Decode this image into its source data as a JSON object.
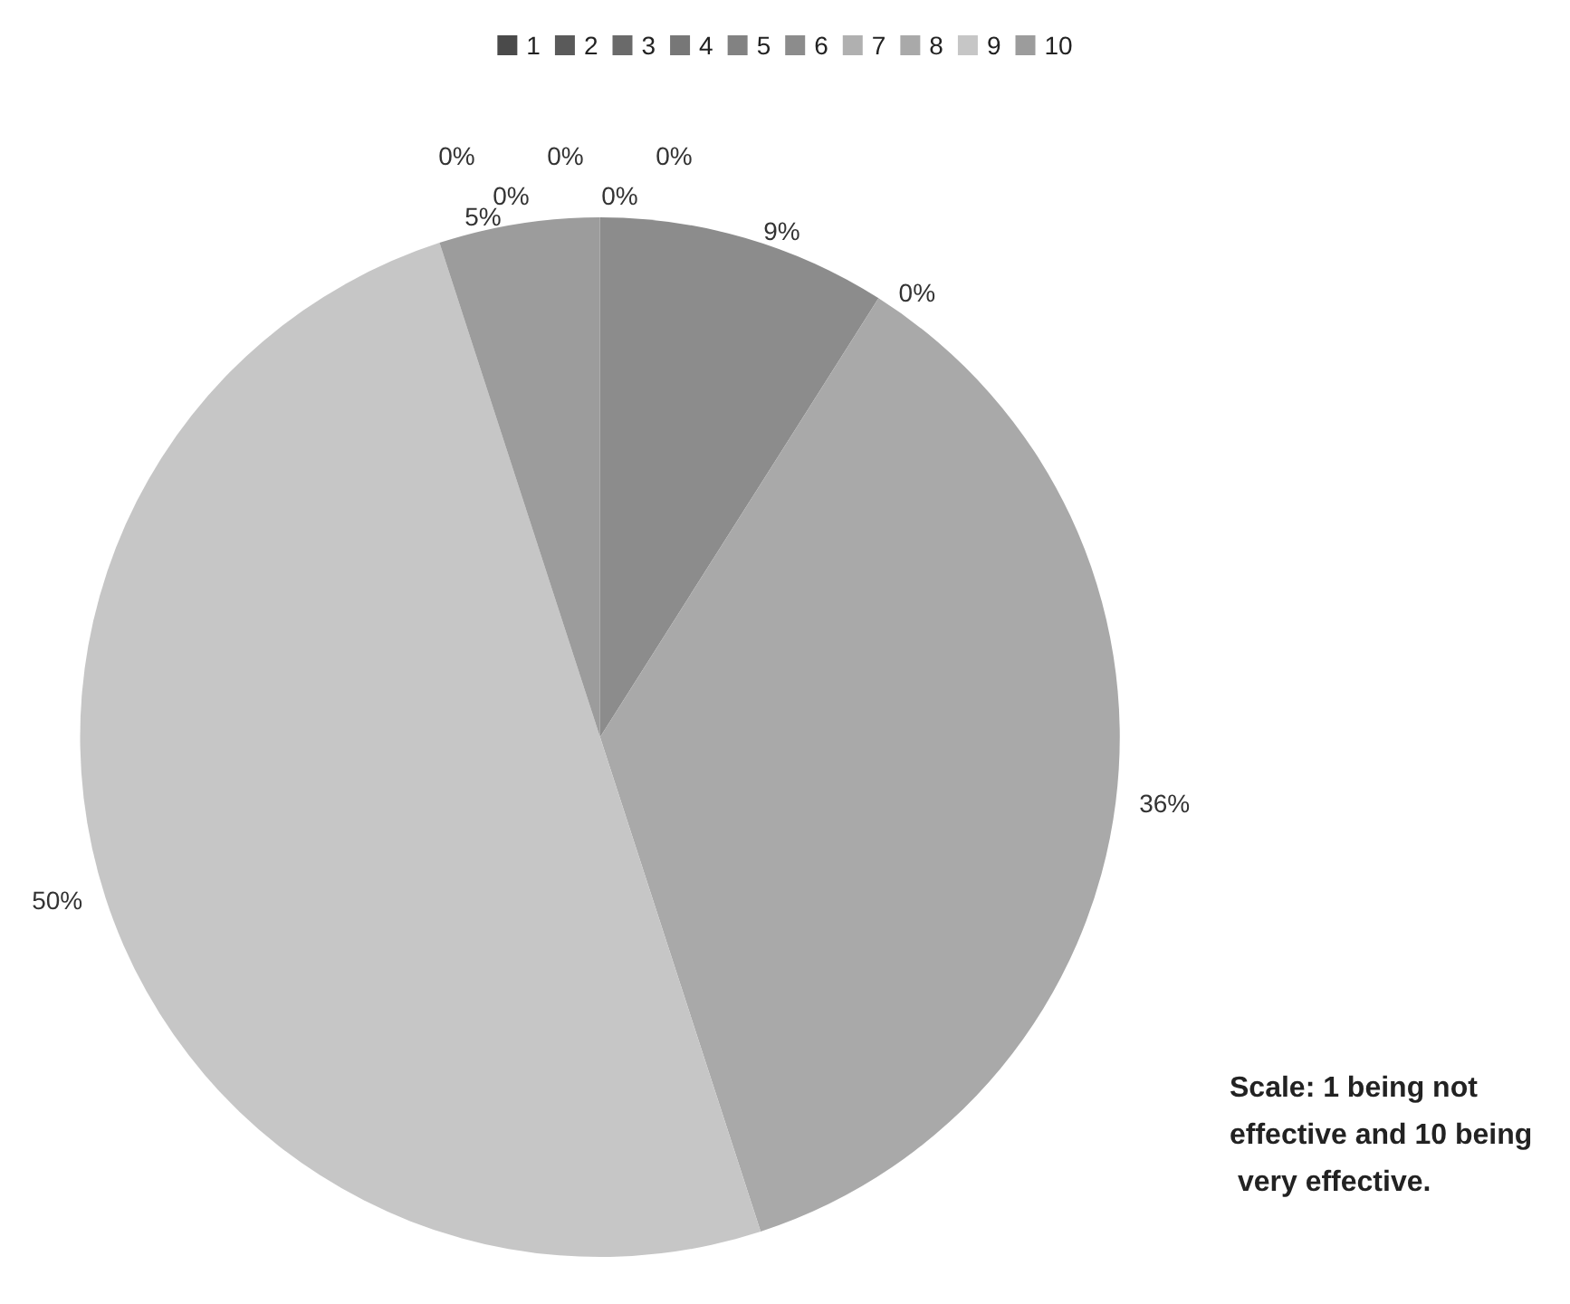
{
  "chart_data": {
    "type": "pie",
    "categories": [
      "1",
      "2",
      "3",
      "4",
      "5",
      "6",
      "7",
      "8",
      "9",
      "10"
    ],
    "values": [
      0,
      0,
      0,
      0,
      0,
      9,
      0,
      36,
      50,
      5
    ],
    "colors": [
      "#4a4a4a",
      "#5a5a5a",
      "#6a6a6a",
      "#777777",
      "#828282",
      "#8c8c8c",
      "#b0b0b0",
      "#a9a9a9",
      "#c6c6c6",
      "#9c9c9c"
    ],
    "value_labels": [
      "0%",
      "0%",
      "0%",
      "0%",
      "0%",
      "9%",
      "0%",
      "36%",
      "50%",
      "5%"
    ],
    "legend": "top",
    "annotations": [
      "Scale: 1 being not effective and 10 being very effective."
    ]
  }
}
